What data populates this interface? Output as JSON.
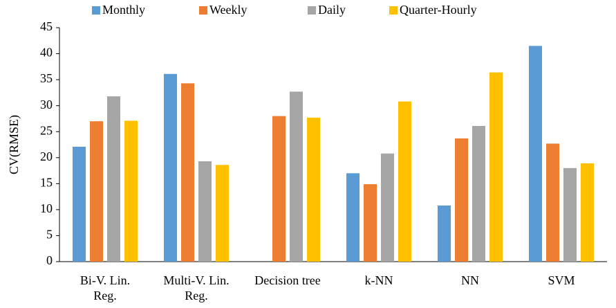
{
  "chart_data": {
    "type": "bar",
    "categories": [
      "Bi-V. Lin.\nReg.",
      "Multi-V. Lin.\nReg.",
      "Decision tree",
      "k-NN",
      "NN",
      "SVM"
    ],
    "series": [
      {
        "name": "Monthly",
        "color": "#5b9bd5",
        "values": [
          22.1,
          36.1,
          null,
          17,
          10.8,
          41.5
        ]
      },
      {
        "name": "Weekly",
        "color": "#ed7d31",
        "values": [
          27,
          34.3,
          28,
          14.9,
          23.7,
          22.7
        ]
      },
      {
        "name": "Daily",
        "color": "#a5a5a5",
        "values": [
          31.8,
          19.3,
          32.7,
          20.8,
          26.1,
          18
        ]
      },
      {
        "name": "Quarter-Hourly",
        "color": "#ffc000",
        "values": [
          27.1,
          18.6,
          27.7,
          30.8,
          36.4,
          18.9
        ]
      }
    ],
    "ylabel": "CV(RMSE)",
    "ylim": [
      0,
      45
    ],
    "yticks": [
      0,
      5,
      10,
      15,
      20,
      25,
      30,
      35,
      40,
      45
    ],
    "grid": false,
    "legend": "top"
  }
}
